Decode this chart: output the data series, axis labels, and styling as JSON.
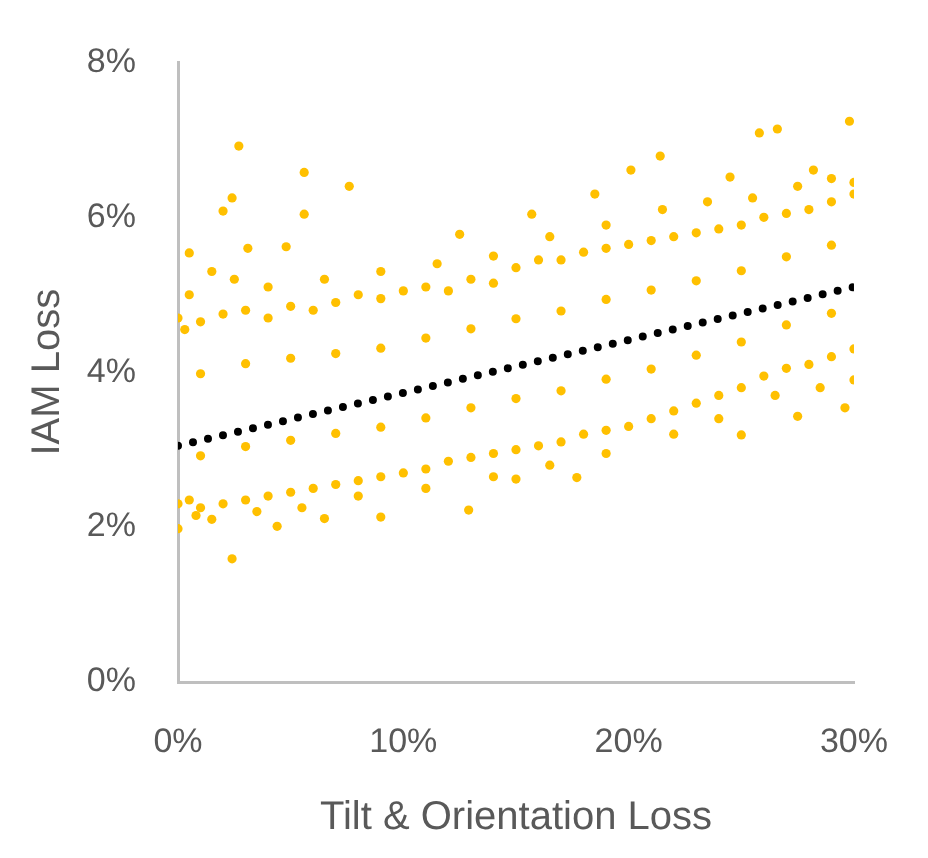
{
  "chart_data": {
    "type": "scatter",
    "xlabel": "Tilt & Orientation Loss",
    "ylabel": "IAM Loss",
    "xlim": [
      0,
      30
    ],
    "ylim": [
      0,
      8
    ],
    "xticks": [
      {
        "value": 0,
        "label": "0%"
      },
      {
        "value": 10,
        "label": "10%"
      },
      {
        "value": 20,
        "label": "20%"
      },
      {
        "value": 30,
        "label": "30%"
      }
    ],
    "yticks": [
      {
        "value": 0,
        "label": "0%"
      },
      {
        "value": 2,
        "label": "2%"
      },
      {
        "value": 4,
        "label": "4%"
      },
      {
        "value": 6,
        "label": "6%"
      },
      {
        "value": 8,
        "label": "8%"
      }
    ],
    "marker": "circle",
    "series": [
      {
        "type": "scatter",
        "color": "#ffc000",
        "x": [
          0,
          0.3,
          1,
          2,
          3,
          4,
          5,
          6,
          7,
          8,
          9,
          10,
          11,
          12,
          13,
          14,
          15,
          16,
          17,
          18,
          19,
          20,
          21,
          22,
          23,
          24,
          25,
          26,
          27,
          28,
          29,
          30,
          0.5,
          1.5,
          2.5,
          4,
          6.5,
          9,
          11.5,
          14,
          16.5,
          19,
          21.5,
          23.5,
          25.5,
          27.5,
          29,
          30,
          1,
          3,
          5,
          7,
          9,
          11,
          13,
          15,
          17,
          19,
          21,
          23,
          25,
          27,
          29,
          1,
          3,
          5,
          7,
          9,
          11,
          13,
          15,
          17,
          19,
          21,
          23,
          25,
          27,
          29,
          0,
          0.5,
          1,
          2,
          3,
          4,
          5,
          6,
          7,
          8,
          9,
          10,
          11,
          12,
          13,
          14,
          15,
          16,
          17,
          18,
          19,
          20,
          21,
          22,
          23,
          24,
          25,
          26,
          27,
          28,
          29,
          30,
          1.5,
          3.5,
          5.5,
          8,
          11,
          14,
          16.5,
          19,
          22,
          24,
          26.5,
          28.5,
          30,
          2.7,
          2.4,
          2.0,
          5.6,
          5.6,
          7.6,
          0.5,
          3.1,
          4.8,
          12.5,
          15.7,
          18.5,
          20.1,
          21.4,
          24.5,
          25.8,
          26.6,
          29.8,
          28.2,
          2.4,
          0,
          9.0,
          12.9,
          17.7,
          25.0,
          27.5,
          29.6,
          0.8,
          4.4,
          6.5,
          15.0
        ],
        "values": [
          4.7,
          4.55,
          4.65,
          4.75,
          4.8,
          4.7,
          4.85,
          4.8,
          4.9,
          5.0,
          4.95,
          5.05,
          5.1,
          5.05,
          5.2,
          5.15,
          5.35,
          5.45,
          5.45,
          5.55,
          5.6,
          5.65,
          5.7,
          5.75,
          5.8,
          5.85,
          5.9,
          6.0,
          6.05,
          6.1,
          6.2,
          6.3,
          5.0,
          5.3,
          5.2,
          5.1,
          5.2,
          5.3,
          5.4,
          5.5,
          5.75,
          5.9,
          6.1,
          6.2,
          6.25,
          6.4,
          6.5,
          6.45,
          3.98,
          4.11,
          4.18,
          4.24,
          4.31,
          4.44,
          4.56,
          4.69,
          4.79,
          4.94,
          5.06,
          5.18,
          5.31,
          5.49,
          5.64,
          2.92,
          3.04,
          3.12,
          3.21,
          3.29,
          3.41,
          3.54,
          3.66,
          3.76,
          3.91,
          4.04,
          4.22,
          4.39,
          4.61,
          4.76,
          2.3,
          2.35,
          2.25,
          2.3,
          2.35,
          2.4,
          2.45,
          2.5,
          2.55,
          2.6,
          2.65,
          2.7,
          2.75,
          2.85,
          2.9,
          2.95,
          3.0,
          3.05,
          3.1,
          3.2,
          3.25,
          3.3,
          3.4,
          3.5,
          3.6,
          3.7,
          3.8,
          3.95,
          4.05,
          4.1,
          4.2,
          4.3,
          2.1,
          2.2,
          2.25,
          2.4,
          2.5,
          2.65,
          2.8,
          2.95,
          3.2,
          3.4,
          3.7,
          3.8,
          3.9,
          6.92,
          6.25,
          6.08,
          6.58,
          6.04,
          6.4,
          5.54,
          5.6,
          5.62,
          5.78,
          6.04,
          6.3,
          6.61,
          6.79,
          6.52,
          7.09,
          7.14,
          7.24,
          6.61,
          1.59,
          1.98,
          2.13,
          2.22,
          2.64,
          3.19,
          3.43,
          3.54,
          2.15,
          2.01,
          2.11,
          2.62
        ]
      },
      {
        "type": "line",
        "color": "#000000",
        "x": [
          0,
          30
        ],
        "values": [
          3.05,
          5.1
        ],
        "line_style": "dotted",
        "marker": "none"
      }
    ]
  }
}
